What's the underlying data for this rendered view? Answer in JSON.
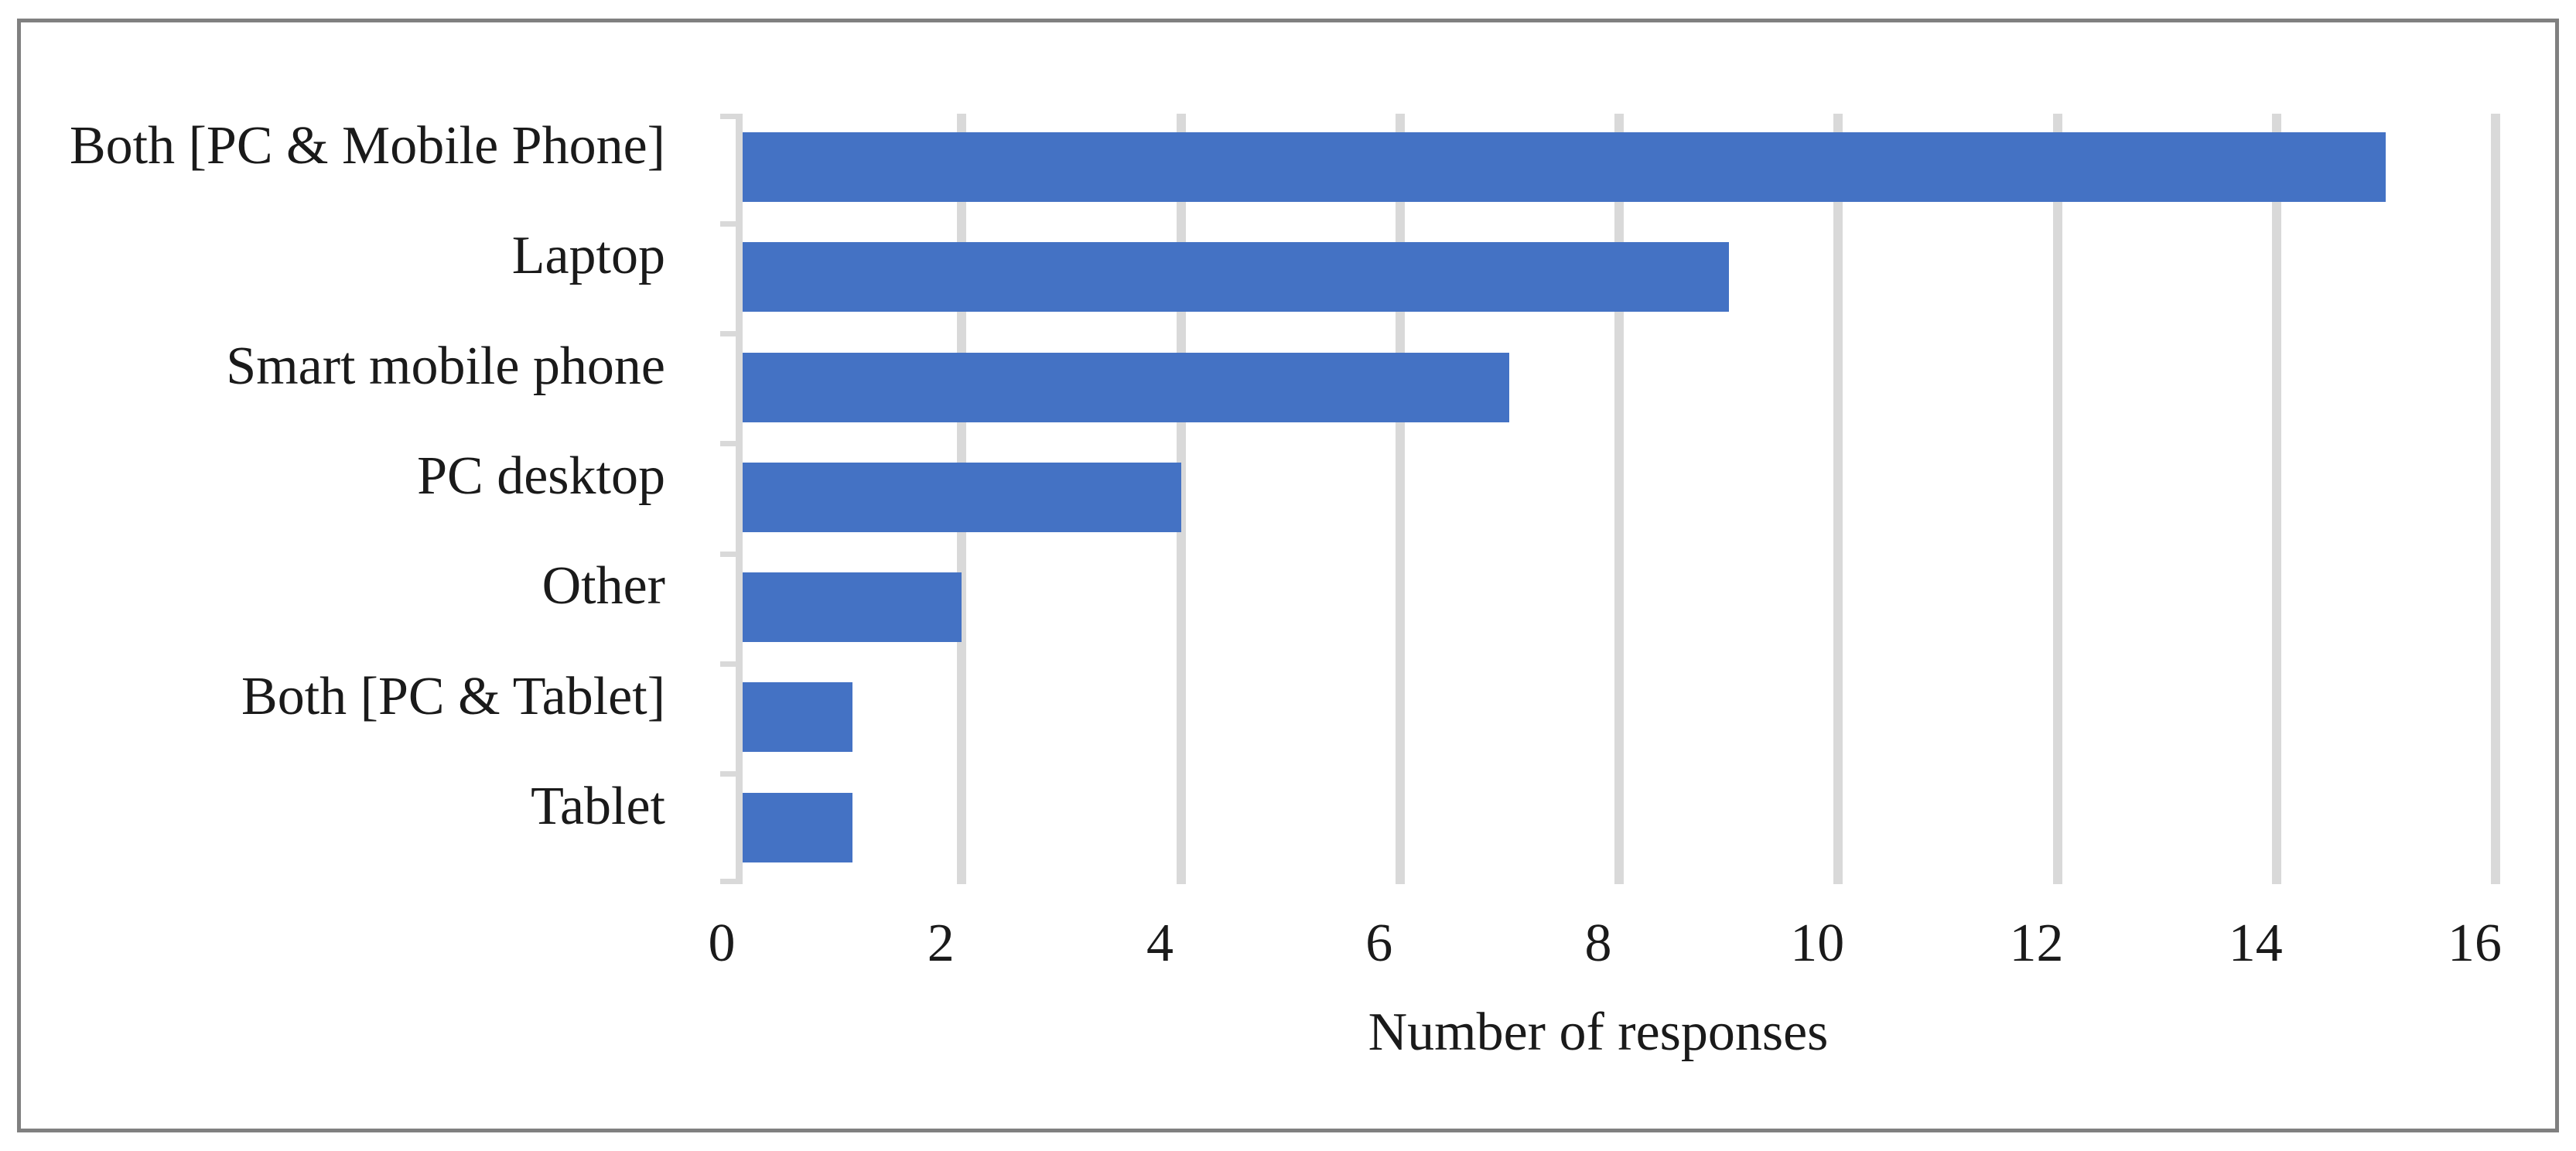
{
  "chart_data": {
    "type": "bar",
    "orientation": "horizontal",
    "title": "",
    "xlabel": "Number of responses",
    "ylabel": "",
    "categories": [
      "Both [PC & Mobile Phone]",
      "Laptop",
      "Smart mobile phone",
      "PC desktop",
      "Other",
      "Both [PC & Tablet]",
      "Tablet"
    ],
    "values": [
      15,
      9,
      7,
      4,
      2,
      1,
      1
    ],
    "xlim": [
      0,
      16
    ],
    "xticks": [
      0,
      2,
      4,
      6,
      8,
      10,
      12,
      14,
      16
    ],
    "grid": "vertical",
    "legend_position": "none",
    "colors": {
      "bar": "#4472C4",
      "gridline": "#D9D9D9",
      "axis_line": "#D9D9D9",
      "tick_mark": "#D9D9D9",
      "text": "#1A1A1A",
      "frame_border": "#808080",
      "background": "#FFFFFF"
    }
  }
}
